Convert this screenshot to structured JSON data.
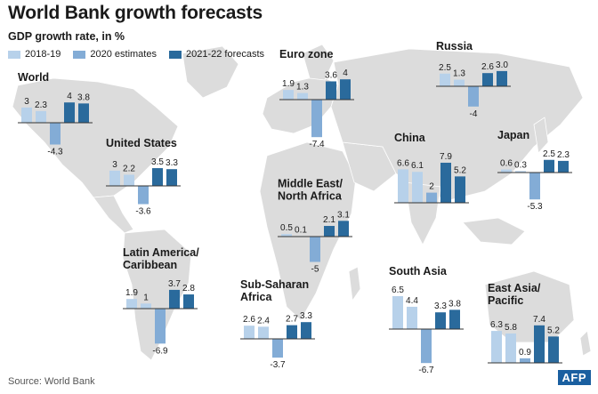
{
  "title": "World Bank growth forecasts",
  "subtitle": "GDP growth rate, in %",
  "source": "Source: World Bank",
  "logo": "AFP",
  "colors": {
    "s2018": "#b7d1ea",
    "s2020": "#83acd6",
    "s2022": "#2a6a9c",
    "land": "#dcdcdc",
    "ocean": "#ffffff",
    "axis": "#333333"
  },
  "legend": [
    {
      "label": "2018-19",
      "color": "#b7d1ea"
    },
    {
      "label": "2020 estimates",
      "color": "#83acd6"
    },
    {
      "label": "2021-22 forecasts",
      "color": "#2a6a9c"
    }
  ],
  "chart_data": {
    "type": "bar",
    "series": [
      {
        "name": "2018-19"
      },
      {
        "name": "2020 estimates"
      },
      {
        "name": "2021-22 forecasts"
      }
    ],
    "regions": [
      {
        "name": "World",
        "values": [
          3,
          2.3,
          -4.3,
          4,
          3.8
        ],
        "labels": [
          "3",
          "2.3",
          "-4.3",
          "4",
          "3.8"
        ]
      },
      {
        "name": "United States",
        "values": [
          3,
          2.2,
          -3.6,
          3.5,
          3.3
        ],
        "labels": [
          "3",
          "2.2",
          "-3.6",
          "3.5",
          "3.3"
        ]
      },
      {
        "name": "Euro zone",
        "values": [
          1.9,
          1.3,
          -7.4,
          3.6,
          4
        ],
        "labels": [
          "1.9",
          "1.3",
          "-7.4",
          "3.6",
          "4"
        ]
      },
      {
        "name": "Russia",
        "values": [
          2.5,
          1.3,
          -4,
          2.6,
          3.0
        ],
        "labels": [
          "2.5",
          "1.3",
          "-4",
          "2.6",
          "3.0"
        ]
      },
      {
        "name": "China",
        "values": [
          6.6,
          6.1,
          2,
          7.9,
          5.2
        ],
        "labels": [
          "6.6",
          "6.1",
          "2",
          "7.9",
          "5.2"
        ]
      },
      {
        "name": "Japan",
        "values": [
          0.6,
          0.3,
          -5.3,
          2.5,
          2.3
        ],
        "labels": [
          "0.6",
          "0.3",
          "-5.3",
          "2.5",
          "2.3"
        ]
      },
      {
        "name": "Middle East/\nNorth Africa",
        "values": [
          0.5,
          0.1,
          -5,
          2.1,
          3.1
        ],
        "labels": [
          "0.5",
          "0.1",
          "-5",
          "2.1",
          "3.1"
        ]
      },
      {
        "name": "Latin America/\nCaribbean",
        "values": [
          1.9,
          1,
          -6.9,
          3.7,
          2.8
        ],
        "labels": [
          "1.9",
          "1",
          "-6.9",
          "3.7",
          "2.8"
        ]
      },
      {
        "name": "Sub-Saharan\nAfrica",
        "values": [
          2.6,
          2.4,
          -3.7,
          2.7,
          3.3
        ],
        "labels": [
          "2.6",
          "2.4",
          "-3.7",
          "2.7",
          "3.3"
        ]
      },
      {
        "name": "South Asia",
        "values": [
          6.5,
          4.4,
          -6.7,
          3.3,
          3.8
        ],
        "labels": [
          "6.5",
          "4.4",
          "-6.7",
          "3.3",
          "3.8"
        ]
      },
      {
        "name": "East Asia/\nPacific",
        "values": [
          6.3,
          5.8,
          0.9,
          7.4,
          5.2
        ],
        "labels": [
          "6.3",
          "5.8",
          "0.9",
          "7.4",
          "5.2"
        ]
      }
    ]
  }
}
